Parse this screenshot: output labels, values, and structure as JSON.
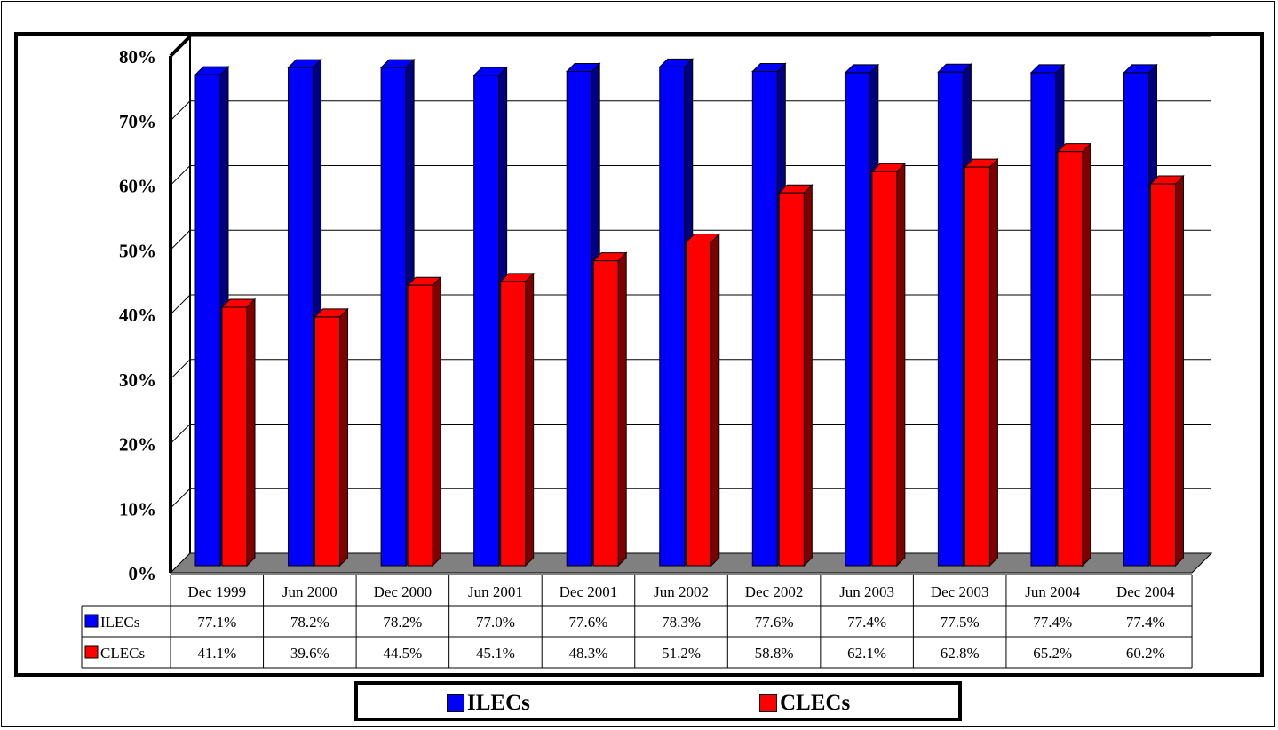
{
  "chart_data": {
    "type": "bar",
    "categories": [
      "Dec 1999",
      "Jun 2000",
      "Dec 2000",
      "Jun 2001",
      "Dec 2001",
      "Jun 2002",
      "Dec 2002",
      "Jun 2003",
      "Dec 2003",
      "Jun 2004",
      "Dec 2004"
    ],
    "series": [
      {
        "name": "ILECs",
        "values": [
          77.1,
          78.2,
          78.2,
          77.0,
          77.6,
          78.3,
          77.6,
          77.4,
          77.5,
          77.4,
          77.4
        ],
        "labels": [
          "77.1%",
          "78.2%",
          "78.2%",
          "77.0%",
          "77.6%",
          "78.3%",
          "77.6%",
          "77.4%",
          "77.5%",
          "77.4%",
          "77.4%"
        ],
        "color": "#0000ff",
        "side_color": "#000080"
      },
      {
        "name": "CLECs",
        "values": [
          41.1,
          39.6,
          44.5,
          45.1,
          48.3,
          51.2,
          58.8,
          62.1,
          62.8,
          65.2,
          60.2
        ],
        "labels": [
          "41.1%",
          "39.6%",
          "44.5%",
          "45.1%",
          "48.3%",
          "51.2%",
          "58.8%",
          "62.1%",
          "62.8%",
          "65.2%",
          "60.2%"
        ],
        "color": "#ff0000",
        "side_color": "#800000"
      }
    ],
    "y_ticks": [
      "0%",
      "10%",
      "20%",
      "30%",
      "40%",
      "50%",
      "60%",
      "70%",
      "80%"
    ],
    "ylim": [
      0,
      80
    ],
    "grid": true,
    "floor_color": "#808080",
    "legend_position": "bottom",
    "data_table": true,
    "title": "",
    "xlabel": "",
    "ylabel": ""
  },
  "legend": {
    "items": [
      {
        "label": "ILECs",
        "color": "#0000ff"
      },
      {
        "label": "CLECs",
        "color": "#ff0000"
      }
    ]
  }
}
